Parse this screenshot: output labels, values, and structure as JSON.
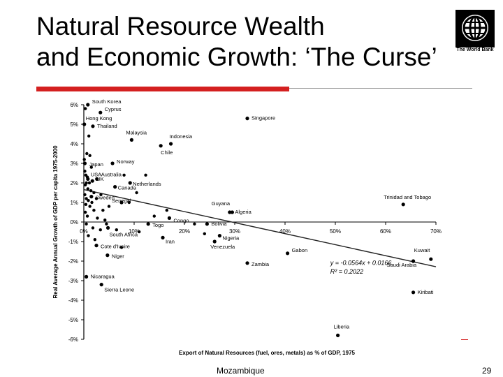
{
  "slide": {
    "title_line1": "Natural Resource Wealth",
    "title_line2": "and Economic Growth: ‘The Curse’",
    "logo_text": "The World Bank",
    "footer": "Mozambique",
    "page_number": "29"
  },
  "chart_data": {
    "type": "scatter",
    "title": "",
    "xlabel": "Export of Natural Resources (fuel, ores, metals) as % of GDP, 1975",
    "ylabel": "Real Average Annual Growth of GDP per capita 1975-2000",
    "xlim": [
      0,
      70
    ],
    "ylim": [
      -6,
      6
    ],
    "x_ticks": [
      "0%",
      "10%",
      "20%",
      "30%",
      "40%",
      "50%",
      "60%",
      "70%"
    ],
    "x_tick_values": [
      0,
      10,
      20,
      30,
      40,
      50,
      60,
      70
    ],
    "y_ticks": [
      "6%",
      "5%",
      "4%",
      "3%",
      "2%",
      "1%",
      "0%",
      "-1%",
      "-2%",
      "-3%",
      "-4%",
      "-5%",
      "-6%"
    ],
    "y_tick_values": [
      6,
      5,
      4,
      3,
      2,
      1,
      0,
      -1,
      -2,
      -3,
      -4,
      -5,
      -6
    ],
    "trendline": {
      "slope": -0.0564,
      "intercept": 1.66,
      "equation": "y = -0.0564x + 0.0166",
      "r2": "R² = 0.2022"
    },
    "labeled_points": [
      {
        "label": "South Korea",
        "x": 0.8,
        "y": 6.0
      },
      {
        "label": "Cyprus",
        "x": 3.3,
        "y": 5.6
      },
      {
        "label": "Hong Kong",
        "x": 0.1,
        "y": 5.0
      },
      {
        "label": "Thailand",
        "x": 1.8,
        "y": 4.9
      },
      {
        "label": "Malaysia",
        "x": 9.5,
        "y": 4.2
      },
      {
        "label": "Singapore",
        "x": 32.5,
        "y": 5.3
      },
      {
        "label": "Indonesia",
        "x": 17.3,
        "y": 4.0
      },
      {
        "label": "Chile",
        "x": 15.3,
        "y": 3.9
      },
      {
        "label": "Norway",
        "x": 5.7,
        "y": 3.0
      },
      {
        "label": "Japan",
        "x": 0.2,
        "y": 3.0
      },
      {
        "label": "USA",
        "x": 0.8,
        "y": 2.2
      },
      {
        "label": "Australia",
        "x": 2.6,
        "y": 2.2
      },
      {
        "label": "UK",
        "x": 1.7,
        "y": 2.1
      },
      {
        "label": "Netherlands",
        "x": 9.2,
        "y": 2.0
      },
      {
        "label": "Canada",
        "x": 6.2,
        "y": 1.8
      },
      {
        "label": "Sweden",
        "x": 1.5,
        "y": 1.3
      },
      {
        "label": "Senegal",
        "x": 7.5,
        "y": 1.0
      },
      {
        "label": "Congo",
        "x": 17.0,
        "y": 0.2
      },
      {
        "label": "Guyana",
        "x": 29.0,
        "y": 0.5
      },
      {
        "label": "Algeria",
        "x": 29.5,
        "y": 0.5
      },
      {
        "label": "Trinidad and Tobago",
        "x": 63.5,
        "y": 0.9
      },
      {
        "label": "Togo",
        "x": 12.8,
        "y": -0.1
      },
      {
        "label": "Bolivia",
        "x": 24.5,
        "y": -0.1
      },
      {
        "label": "South Africa",
        "x": 4.8,
        "y": -0.3
      },
      {
        "label": "Iran",
        "x": 15.7,
        "y": -0.8
      },
      {
        "label": "Nigeria",
        "x": 27.0,
        "y": -0.7
      },
      {
        "label": "Cote d'Ivoire",
        "x": 2.5,
        "y": -1.2
      },
      {
        "label": "Venezuela",
        "x": 26.0,
        "y": -1.0
      },
      {
        "label": "Kuwait",
        "x": 69.0,
        "y": -1.9
      },
      {
        "label": "Niger",
        "x": 4.7,
        "y": -1.7
      },
      {
        "label": "Zambia",
        "x": 32.5,
        "y": -2.1
      },
      {
        "label": "Gabon",
        "x": 40.5,
        "y": -1.6
      },
      {
        "label": "Saudi Arabia",
        "x": 65.5,
        "y": -2.0
      },
      {
        "label": "Nicaragua",
        "x": 0.5,
        "y": -2.8
      },
      {
        "label": "Sierra Leone",
        "x": 3.5,
        "y": -3.2
      },
      {
        "label": "Kiribati",
        "x": 65.5,
        "y": -3.6
      },
      {
        "label": "Liberia",
        "x": 50.5,
        "y": -5.8
      }
    ],
    "unlabeled_points": [
      {
        "x": 0.3,
        "y": 5.8
      },
      {
        "x": 1.0,
        "y": 4.4
      },
      {
        "x": 0.6,
        "y": 3.5
      },
      {
        "x": 1.2,
        "y": 3.4
      },
      {
        "x": 0.2,
        "y": 2.6
      },
      {
        "x": 0.4,
        "y": 2.4
      },
      {
        "x": 0.7,
        "y": 2.3
      },
      {
        "x": 1.1,
        "y": 2.0
      },
      {
        "x": 0.3,
        "y": 1.9
      },
      {
        "x": 0.8,
        "y": 1.7
      },
      {
        "x": 1.4,
        "y": 1.6
      },
      {
        "x": 2.0,
        "y": 1.5
      },
      {
        "x": 0.2,
        "y": 1.4
      },
      {
        "x": 0.5,
        "y": 1.2
      },
      {
        "x": 0.9,
        "y": 1.1
      },
      {
        "x": 1.6,
        "y": 1.0
      },
      {
        "x": 2.5,
        "y": 1.2
      },
      {
        "x": 3.4,
        "y": 1.4
      },
      {
        "x": 0.4,
        "y": 0.9
      },
      {
        "x": 1.2,
        "y": 0.8
      },
      {
        "x": 2.0,
        "y": 0.6
      },
      {
        "x": 0.3,
        "y": 0.5
      },
      {
        "x": 3.8,
        "y": 0.6
      },
      {
        "x": 0.7,
        "y": 0.3
      },
      {
        "x": 2.7,
        "y": 0.2
      },
      {
        "x": 4.2,
        "y": 0.1
      },
      {
        "x": 0.5,
        "y": -0.1
      },
      {
        "x": 1.8,
        "y": -0.3
      },
      {
        "x": 3.3,
        "y": -0.4
      },
      {
        "x": 4.5,
        "y": -0.1
      },
      {
        "x": 0.9,
        "y": -0.7
      },
      {
        "x": 2.2,
        "y": -0.9
      },
      {
        "x": 8.0,
        "y": 2.4
      },
      {
        "x": 12.3,
        "y": 2.4
      },
      {
        "x": 10.5,
        "y": 1.5
      },
      {
        "x": 14.0,
        "y": 0.3
      },
      {
        "x": 16.5,
        "y": 0.6
      },
      {
        "x": 9.0,
        "y": 1.0
      },
      {
        "x": 6.5,
        "y": -0.4
      },
      {
        "x": 7.5,
        "y": -1.3
      },
      {
        "x": 11.0,
        "y": -0.5
      },
      {
        "x": 22.0,
        "y": -0.1
      },
      {
        "x": 24.0,
        "y": -0.6
      },
      {
        "x": 0.1,
        "y": 3.2
      },
      {
        "x": 1.5,
        "y": 2.8
      },
      {
        "x": 0.5,
        "y": 2.0
      },
      {
        "x": 5.0,
        "y": 0.8
      }
    ]
  }
}
